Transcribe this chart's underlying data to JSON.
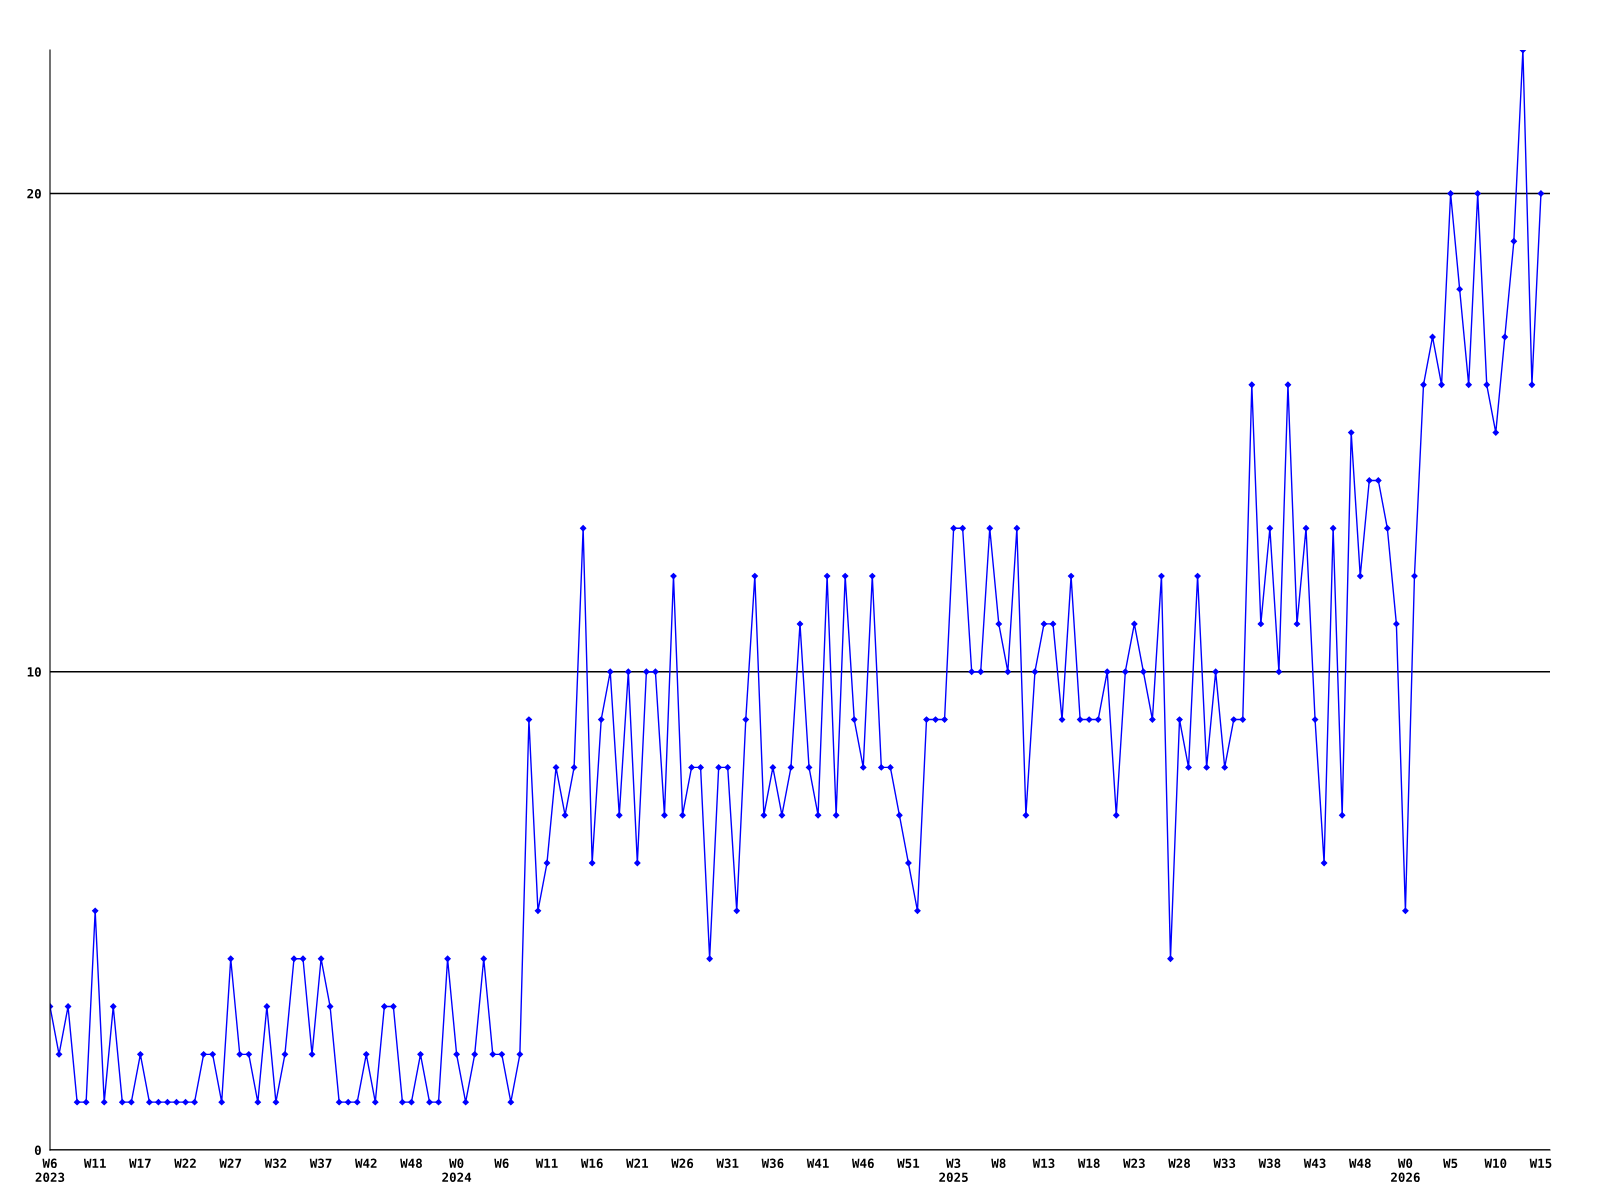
{
  "chart_data": {
    "type": "line",
    "categories": [
      "W6\n2023",
      null,
      null,
      null,
      null,
      "W11",
      null,
      null,
      null,
      null,
      "W17",
      null,
      null,
      null,
      null,
      "W22",
      null,
      null,
      null,
      null,
      "W27",
      null,
      null,
      null,
      null,
      "W32",
      null,
      null,
      null,
      null,
      "W37",
      null,
      null,
      null,
      null,
      "W42",
      null,
      null,
      null,
      null,
      "W48",
      null,
      null,
      null,
      null,
      "W0\n2024",
      null,
      null,
      null,
      null,
      "W6",
      null,
      null,
      null,
      null,
      "W11",
      null,
      null,
      null,
      null,
      "W16",
      null,
      null,
      null,
      null,
      "W21",
      null,
      null,
      null,
      null,
      "W26",
      null,
      null,
      null,
      null,
      "W31",
      null,
      null,
      null,
      null,
      "W36",
      null,
      null,
      null,
      null,
      "W41",
      null,
      null,
      null,
      null,
      "W46",
      null,
      null,
      null,
      null,
      "W51",
      null,
      null,
      null,
      null,
      "W3\n2025",
      null,
      null,
      null,
      null,
      "W8",
      null,
      null,
      null,
      null,
      "W13",
      null,
      null,
      null,
      null,
      "W18",
      null,
      null,
      null,
      null,
      "W23",
      null,
      null,
      null,
      null,
      "W28",
      null,
      null,
      null,
      null,
      "W33",
      null,
      null,
      null,
      null,
      "W38",
      null,
      null,
      null,
      null,
      "W43",
      null,
      null,
      null,
      null,
      "W48",
      null,
      null,
      null,
      null,
      "W0\n2026",
      null,
      null,
      null,
      null,
      "W5",
      null,
      null,
      null,
      null,
      "W10",
      null,
      null,
      null,
      null,
      "W15"
    ],
    "series": [
      {
        "color": "#0000ff",
        "values": [
          3,
          2,
          3,
          1,
          1,
          5,
          1,
          3,
          1,
          1,
          2,
          1,
          1,
          1,
          1,
          1,
          1,
          2,
          2,
          1,
          4,
          2,
          2,
          1,
          3,
          1,
          2,
          4,
          4,
          2,
          4,
          3,
          1,
          1,
          1,
          2,
          1,
          3,
          3,
          1,
          1,
          2,
          1,
          1,
          4,
          2,
          1,
          2,
          4,
          2,
          2,
          1,
          2,
          9,
          5,
          6,
          8,
          7,
          8,
          13,
          6,
          9,
          10,
          7,
          10,
          6,
          10,
          10,
          7,
          12,
          7,
          8,
          8,
          4,
          8,
          8,
          5,
          9,
          12,
          7,
          8,
          7,
          8,
          11,
          8,
          7,
          12,
          7,
          12,
          9,
          8,
          12,
          8,
          8,
          7,
          6,
          5,
          9,
          9,
          9,
          13,
          13,
          10,
          10,
          13,
          11,
          10,
          13,
          7,
          10,
          11,
          11,
          9,
          12,
          9,
          9,
          9,
          10,
          7,
          10,
          11,
          10,
          9,
          12,
          4,
          9,
          8,
          12,
          8,
          10,
          8,
          9,
          9,
          16,
          11,
          13,
          10,
          16,
          11,
          13,
          9,
          6,
          13,
          7,
          15,
          12,
          14,
          14,
          13,
          11,
          5,
          12,
          16,
          17,
          16,
          20,
          18,
          16,
          20,
          16,
          15,
          17,
          19,
          23,
          16,
          20
        ]
      }
    ],
    "ylim": [
      0,
      23
    ],
    "yticks": [
      0,
      10,
      20
    ],
    "grid": "y",
    "marker": "diamond",
    "line_style": "solid"
  }
}
